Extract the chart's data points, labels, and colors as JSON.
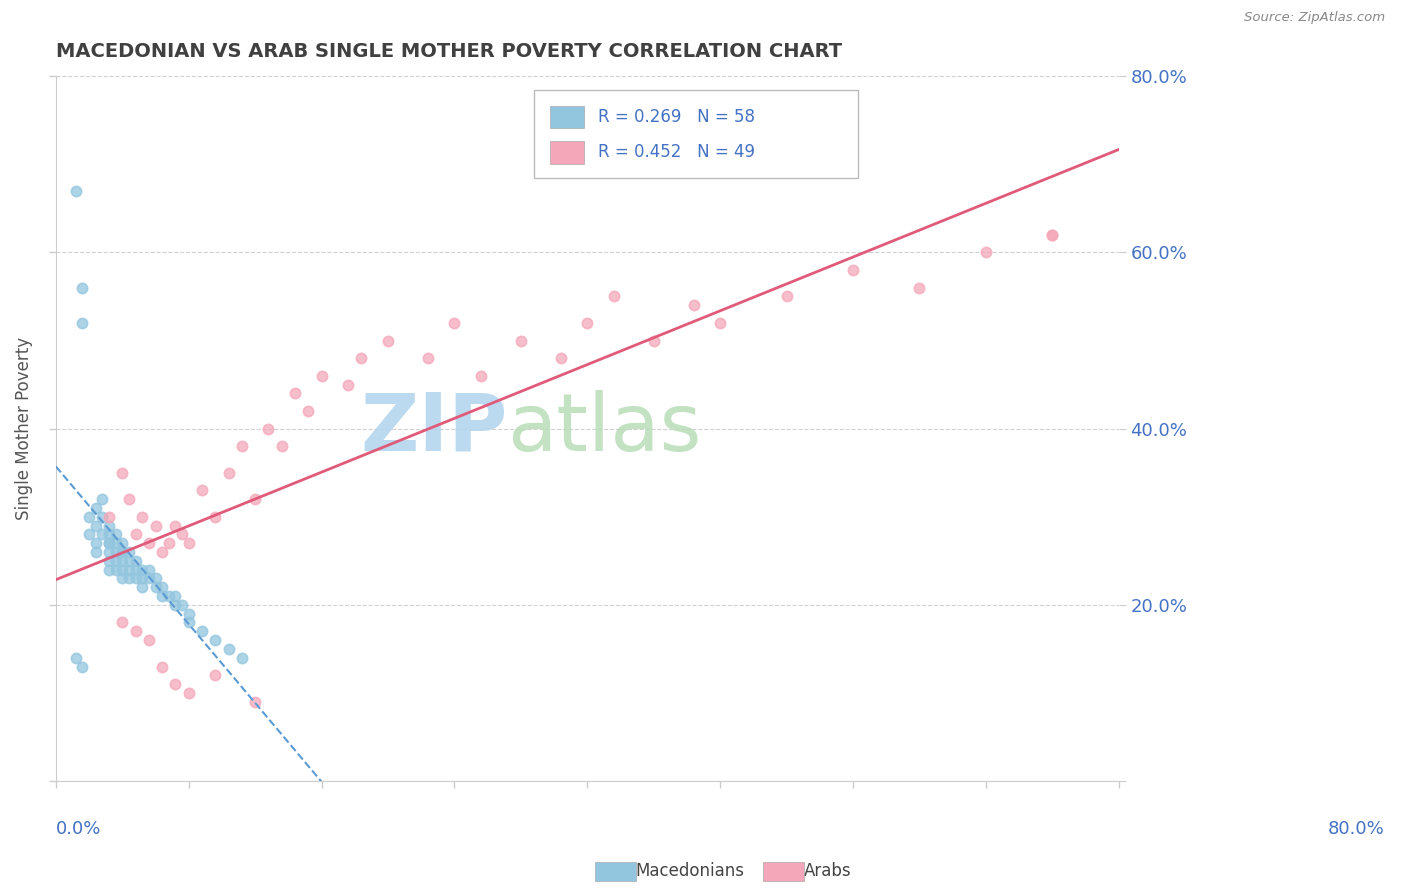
{
  "title": "MACEDONIAN VS ARAB SINGLE MOTHER POVERTY CORRELATION CHART",
  "source": "Source: ZipAtlas.com",
  "ylabel": "Single Mother Poverty",
  "mac_R": 0.269,
  "mac_N": 58,
  "arab_R": 0.452,
  "arab_N": 49,
  "mac_color": "#92c5de",
  "arab_color": "#f4a7b9",
  "mac_line_color": "#5b9bd5",
  "arab_line_color": "#e05a7a",
  "watermark_zip_color": "#b8d9f0",
  "watermark_atlas_color": "#c8e6c9",
  "background_color": "#ffffff",
  "grid_color": "#cccccc",
  "tick_label_color": "#4472c4",
  "title_color": "#404040",
  "mac_x": [
    0.015,
    0.02,
    0.02,
    0.025,
    0.025,
    0.03,
    0.03,
    0.03,
    0.03,
    0.035,
    0.035,
    0.035,
    0.04,
    0.04,
    0.04,
    0.04,
    0.04,
    0.04,
    0.04,
    0.045,
    0.045,
    0.045,
    0.045,
    0.045,
    0.05,
    0.05,
    0.05,
    0.05,
    0.05,
    0.05,
    0.055,
    0.055,
    0.055,
    0.055,
    0.06,
    0.06,
    0.06,
    0.065,
    0.065,
    0.065,
    0.07,
    0.07,
    0.075,
    0.075,
    0.08,
    0.08,
    0.085,
    0.09,
    0.09,
    0.095,
    0.1,
    0.1,
    0.11,
    0.12,
    0.13,
    0.14,
    0.015,
    0.02
  ],
  "mac_y": [
    0.14,
    0.52,
    0.56,
    0.3,
    0.28,
    0.29,
    0.31,
    0.27,
    0.26,
    0.32,
    0.3,
    0.28,
    0.29,
    0.28,
    0.27,
    0.27,
    0.26,
    0.25,
    0.24,
    0.28,
    0.27,
    0.26,
    0.25,
    0.24,
    0.27,
    0.26,
    0.26,
    0.25,
    0.24,
    0.23,
    0.26,
    0.25,
    0.24,
    0.23,
    0.25,
    0.24,
    0.23,
    0.24,
    0.23,
    0.22,
    0.24,
    0.23,
    0.23,
    0.22,
    0.22,
    0.21,
    0.21,
    0.21,
    0.2,
    0.2,
    0.19,
    0.18,
    0.17,
    0.16,
    0.15,
    0.14,
    0.67,
    0.13
  ],
  "arab_x": [
    0.04,
    0.05,
    0.055,
    0.06,
    0.065,
    0.07,
    0.075,
    0.08,
    0.085,
    0.09,
    0.095,
    0.1,
    0.11,
    0.12,
    0.13,
    0.14,
    0.15,
    0.16,
    0.17,
    0.18,
    0.19,
    0.2,
    0.22,
    0.23,
    0.25,
    0.28,
    0.3,
    0.32,
    0.35,
    0.38,
    0.4,
    0.42,
    0.45,
    0.48,
    0.5,
    0.55,
    0.6,
    0.65,
    0.7,
    0.75,
    0.05,
    0.06,
    0.07,
    0.08,
    0.09,
    0.1,
    0.12,
    0.15,
    0.75
  ],
  "arab_y": [
    0.3,
    0.35,
    0.32,
    0.28,
    0.3,
    0.27,
    0.29,
    0.26,
    0.27,
    0.29,
    0.28,
    0.27,
    0.33,
    0.3,
    0.35,
    0.38,
    0.32,
    0.4,
    0.38,
    0.44,
    0.42,
    0.46,
    0.45,
    0.48,
    0.5,
    0.48,
    0.52,
    0.46,
    0.5,
    0.48,
    0.52,
    0.55,
    0.5,
    0.54,
    0.52,
    0.55,
    0.58,
    0.56,
    0.6,
    0.62,
    0.18,
    0.17,
    0.16,
    0.13,
    0.11,
    0.1,
    0.12,
    0.09,
    0.62
  ],
  "xlim": [
    0.0,
    0.8
  ],
  "ylim": [
    0.0,
    0.8
  ],
  "yticks": [
    0.0,
    0.2,
    0.4,
    0.6,
    0.8
  ],
  "yticklabels": [
    "",
    "20.0%",
    "40.0%",
    "60.0%",
    "80.0%"
  ]
}
